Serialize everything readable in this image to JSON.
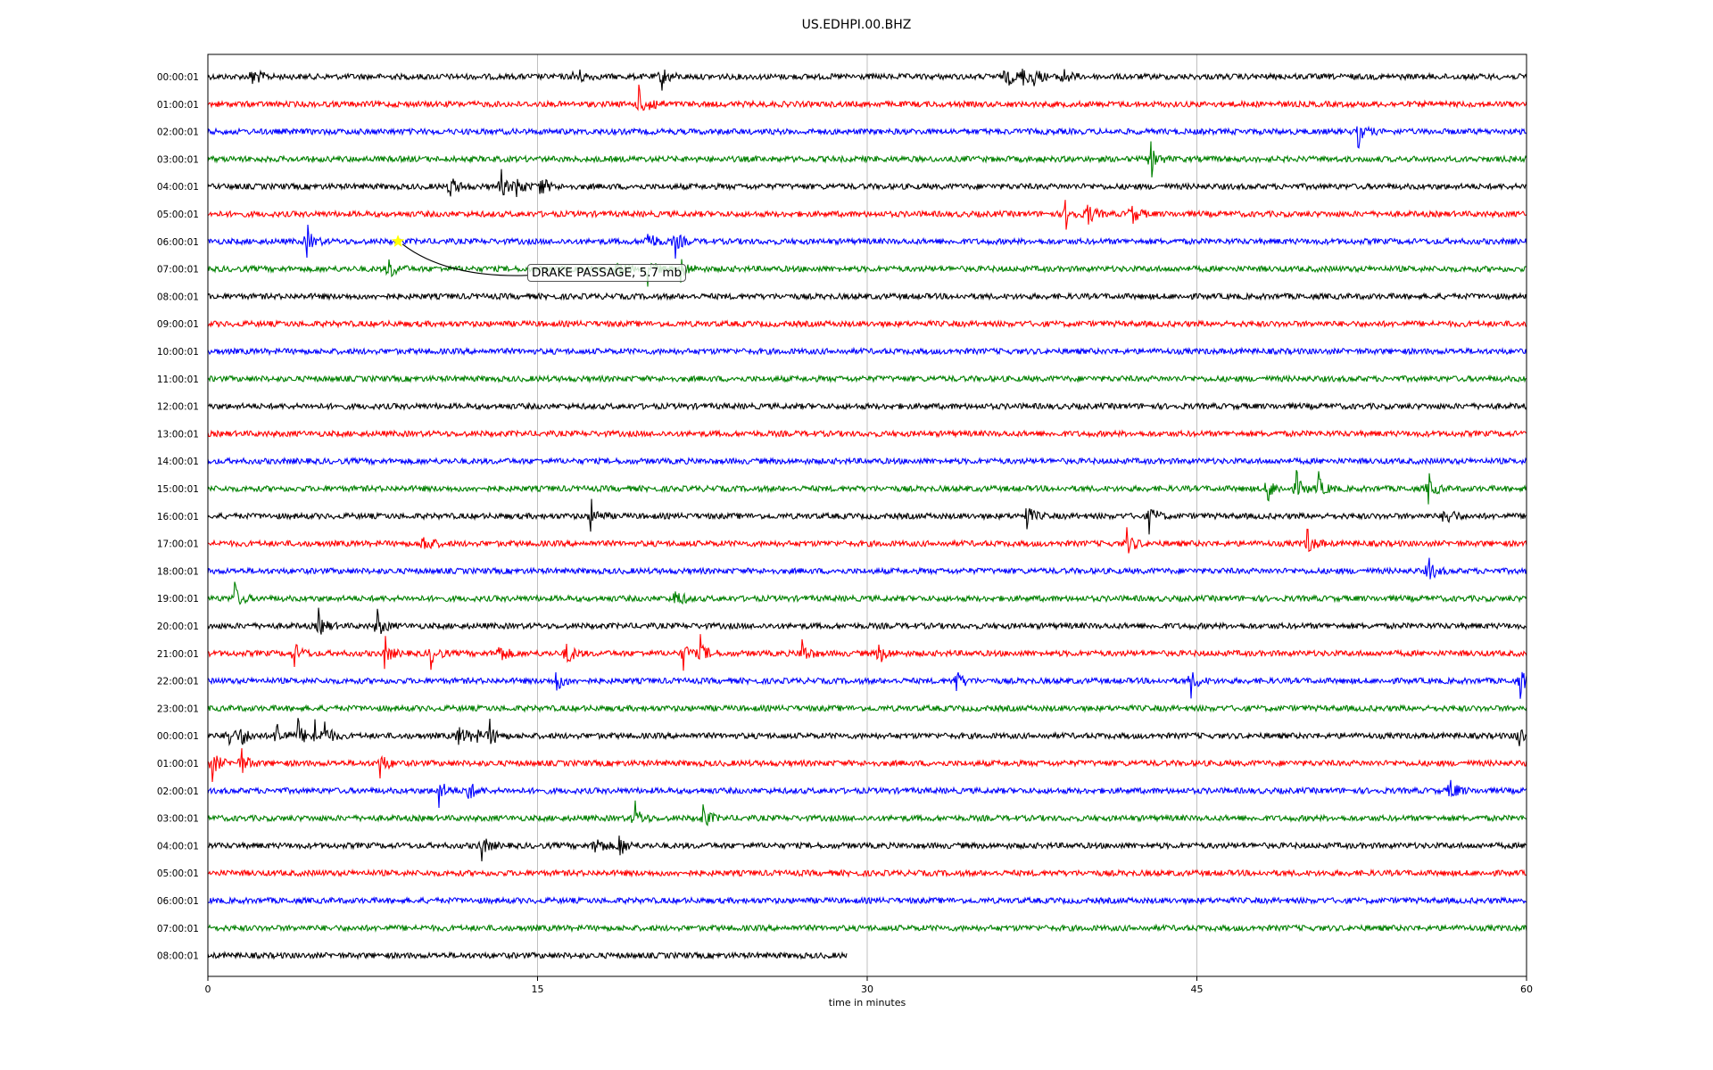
{
  "chart_data": {
    "type": "line",
    "title": "US.EDHPI.00.BHZ",
    "xlabel": "time in minutes",
    "ylabel": "",
    "xlim": [
      0,
      60
    ],
    "xticks": [
      0,
      15,
      30,
      45,
      60
    ],
    "grid": "vertical lines at x ticks",
    "row_colors": [
      "#000000",
      "#ff0000",
      "#0000ff",
      "#008000"
    ],
    "row_labels": [
      "00:00:01",
      "01:00:01",
      "02:00:01",
      "03:00:01",
      "04:00:01",
      "05:00:01",
      "06:00:01",
      "07:00:01",
      "08:00:01",
      "09:00:01",
      "10:00:01",
      "11:00:01",
      "12:00:01",
      "13:00:01",
      "14:00:01",
      "15:00:01",
      "16:00:01",
      "17:00:01",
      "18:00:01",
      "19:00:01",
      "20:00:01",
      "21:00:01",
      "22:00:01",
      "23:00:01",
      "00:00:01",
      "01:00:01",
      "02:00:01",
      "03:00:01",
      "04:00:01",
      "05:00:01",
      "06:00:01",
      "07:00:01",
      "08:00:01"
    ],
    "last_row_end_minutes": 29.1,
    "events": [
      {
        "row": 0,
        "minutes": [
          2.0,
          16.7,
          20.6,
          36.3,
          37.0,
          37.5,
          38.8
        ]
      },
      {
        "row": 1,
        "minutes": [
          19.6,
          20.0
        ]
      },
      {
        "row": 2,
        "minutes": [
          52.3
        ]
      },
      {
        "row": 3,
        "minutes": [
          42.9
        ]
      },
      {
        "row": 4,
        "minutes": [
          11.0,
          13.3,
          14.0,
          15.1
        ]
      },
      {
        "row": 5,
        "minutes": [
          39.0,
          40.0,
          42.0
        ]
      },
      {
        "row": 6,
        "minutes": [
          4.5,
          20.0,
          21.2
        ]
      },
      {
        "row": 7,
        "minutes": [
          8.2,
          18.6,
          20.0,
          21.5
        ]
      },
      {
        "row": 15,
        "minutes": [
          48.2,
          49.5,
          50.5,
          55.5
        ]
      },
      {
        "row": 16,
        "minutes": [
          17.4,
          37.2,
          42.8,
          56.3
        ]
      },
      {
        "row": 17,
        "minutes": [
          9.8,
          41.8,
          50.0
        ]
      },
      {
        "row": 18,
        "minutes": [
          55.5
        ]
      },
      {
        "row": 19,
        "minutes": [
          1.2,
          21.2
        ]
      },
      {
        "row": 20,
        "minutes": [
          5.0,
          7.7
        ]
      },
      {
        "row": 21,
        "minutes": [
          3.9,
          8.0,
          10.1,
          13.2,
          16.3,
          21.6,
          22.4,
          27.0,
          30.5
        ]
      },
      {
        "row": 22,
        "minutes": [
          15.8,
          34.0,
          44.7,
          59.7
        ]
      },
      {
        "row": 24,
        "minutes": [
          0.9,
          1.5,
          3.1,
          4.1,
          4.8,
          5.3,
          11.4,
          12.0,
          12.8,
          59.6
        ]
      },
      {
        "row": 25,
        "minutes": [
          0.2,
          1.5,
          7.8
        ]
      },
      {
        "row": 26,
        "minutes": [
          10.5,
          11.8,
          56.5
        ]
      },
      {
        "row": 27,
        "minutes": [
          19.4,
          22.5
        ]
      },
      {
        "row": 28,
        "minutes": [
          12.4,
          17.6,
          18.7
        ]
      }
    ],
    "annotations": [
      {
        "text": "DRAKE PASSAGE, 5.7 mb",
        "row": 6,
        "minutes": 8.65,
        "marker": "star",
        "marker_color": "#ffff00"
      }
    ]
  }
}
